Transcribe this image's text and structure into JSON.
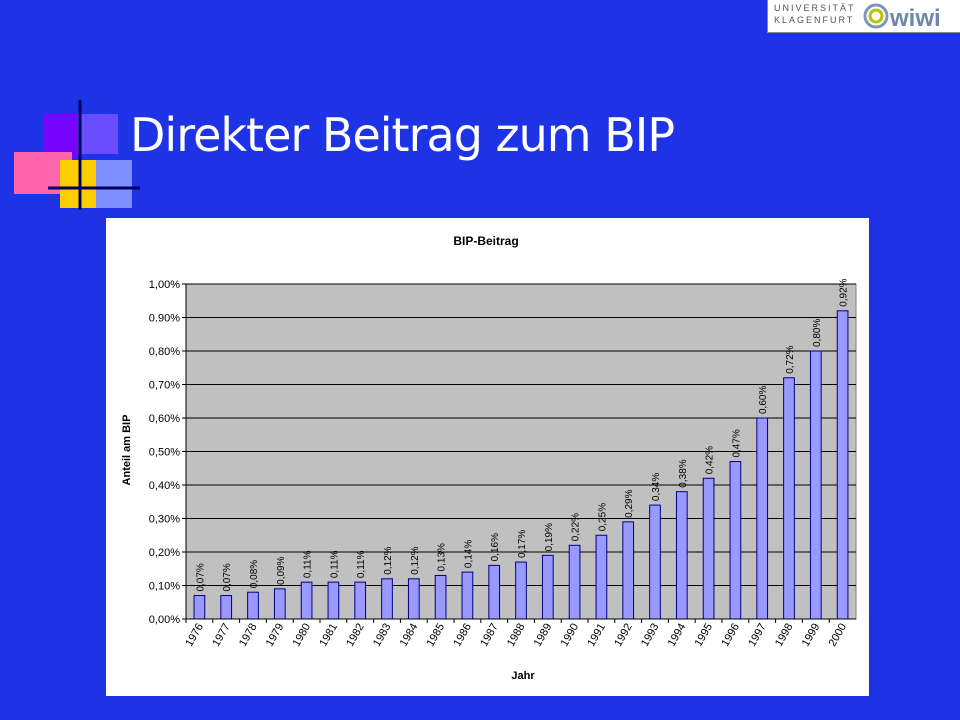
{
  "slide": {
    "title": "Direkter Beitrag zum BIP",
    "logo": {
      "line1": "UNIVERSITÄT",
      "line2": "KLAGENFURT",
      "mark": "wiwi"
    }
  },
  "colors": {
    "background": "#1f33e6",
    "plot_area": "#c0c0c0",
    "bar_fill": "#9999ff",
    "bar_stroke": "#000080"
  },
  "chart_data": {
    "type": "bar",
    "title": "BIP-Beitrag",
    "xlabel": "Jahr",
    "ylabel": "Anteil am BIP",
    "ylim": [
      0,
      0.01
    ],
    "grid": true,
    "categories": [
      "1976",
      "1977",
      "1978",
      "1979",
      "1980",
      "1981",
      "1982",
      "1983",
      "1984",
      "1985",
      "1986",
      "1987",
      "1988",
      "1989",
      "1990",
      "1991",
      "1992",
      "1993",
      "1994",
      "1995",
      "1996",
      "1997",
      "1998",
      "1999",
      "2000"
    ],
    "values": [
      0.0007,
      0.0007,
      0.0008,
      0.0009,
      0.0011,
      0.0011,
      0.0011,
      0.0012,
      0.0012,
      0.0013,
      0.0014,
      0.0016,
      0.0017,
      0.0019,
      0.0022,
      0.0025,
      0.0029,
      0.0034,
      0.0038,
      0.0042,
      0.0047,
      0.006,
      0.0072,
      0.008,
      0.0092
    ],
    "data_labels": [
      "0,07%",
      "0,07%",
      "0,08%",
      "0,09%",
      "0,11%",
      "0,11%",
      "0,11%",
      "0,12%",
      "0,12%",
      "0,13%",
      "0,14%",
      "0,16%",
      "0,17%",
      "0,19%",
      "0,22%",
      "0,25%",
      "0,29%",
      "0,34%",
      "0,38%",
      "0,42%",
      "0,47%",
      "0,60%",
      "0,72%",
      "0,80%",
      "0,92%"
    ],
    "yticks": [
      0,
      0.001,
      0.002,
      0.003,
      0.004,
      0.005,
      0.006,
      0.007,
      0.008,
      0.009,
      0.01
    ],
    "ytick_labels": [
      "0,00%",
      "0,10%",
      "0,20%",
      "0,30%",
      "0,40%",
      "0,50%",
      "0,60%",
      "0,70%",
      "0,80%",
      "0.90%",
      "1,00%"
    ]
  }
}
